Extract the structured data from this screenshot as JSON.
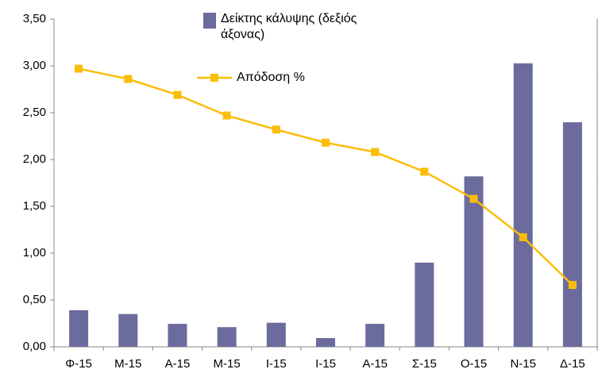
{
  "chart_data": {
    "type": "bar_line",
    "categories": [
      "Φ-15",
      "Μ-15",
      "Α-15",
      "Μ-15",
      "Ι-15",
      "Ι-15",
      "Α-15",
      "Σ-15",
      "Ο-15",
      "Ν-15",
      "Δ-15"
    ],
    "series": [
      {
        "name": "Δείκτης κάλυψης (δεξιός άξονας)",
        "type": "bar",
        "axis": "y2",
        "color": "#6b6b9e",
        "values": [
          0.67,
          0.6,
          0.42,
          0.36,
          0.44,
          0.16,
          0.42,
          1.54,
          3.12,
          5.19,
          4.11
        ]
      },
      {
        "name": "Απόδοση %",
        "type": "line",
        "color": "#fbbd08",
        "values": [
          2.97,
          2.86,
          2.69,
          2.47,
          2.32,
          2.18,
          2.08,
          1.87,
          1.58,
          1.17,
          0.66
        ]
      }
    ],
    "ylim": [
      0,
      3.5
    ],
    "yticks": [
      {
        "value": 0,
        "label": "0,00"
      },
      {
        "value": 0.5,
        "label": "0,50"
      },
      {
        "value": 1,
        "label": "1,00"
      },
      {
        "value": 1.5,
        "label": "1,50"
      },
      {
        "value": 2,
        "label": "2,00"
      },
      {
        "value": 2.5,
        "label": "2,50"
      },
      {
        "value": 3,
        "label": "3,00"
      },
      {
        "value": 3.5,
        "label": "3,50"
      }
    ],
    "y2lim": [
      0,
      6
    ],
    "y2ticks": [
      0,
      1,
      2,
      3,
      4,
      5,
      6
    ]
  }
}
